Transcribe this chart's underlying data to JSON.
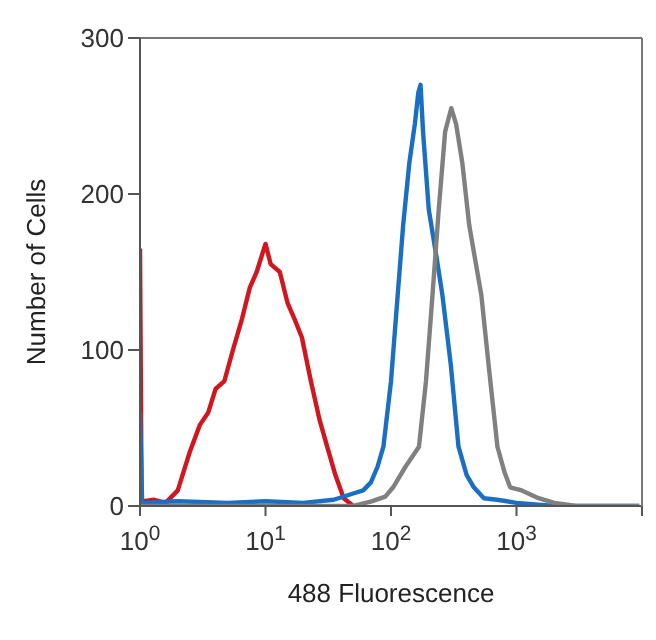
{
  "chart_data": {
    "type": "line",
    "xlabel": "488 Fluorescence",
    "ylabel": "Number of Cells",
    "log": "x",
    "xlim": [
      1,
      10000
    ],
    "xticks": [
      {
        "value": 1,
        "label": "10$^{0}$"
      },
      {
        "value": 10,
        "label": "10$^{1}$"
      },
      {
        "value": 100,
        "label": "10$^{2}$"
      },
      {
        "value": 1000,
        "label": "10$^{3}$"
      },
      {
        "value": 10000,
        "label": null
      }
    ],
    "ylim": [
      0,
      300
    ],
    "yticks": [
      0,
      100,
      200,
      300
    ],
    "marker": "none",
    "line_style": "solid",
    "series": [
      {
        "color": "#d0161e",
        "x": [
          1,
          1.03,
          1.3,
          1.6,
          2,
          2.5,
          3,
          3.5,
          4,
          4.7,
          5.5,
          6.5,
          7.5,
          8.5,
          10,
          11,
          13,
          15,
          17,
          19.5,
          23,
          27,
          31,
          36,
          42,
          50
        ],
        "values": [
          165,
          3,
          4,
          2,
          10,
          35,
          52,
          60,
          75,
          80,
          100,
          120,
          140,
          150,
          168,
          155,
          150,
          130,
          120,
          108,
          80,
          55,
          38,
          20,
          5,
          0
        ]
      },
      {
        "color": "#1a6fc4",
        "x": [
          1,
          1.04,
          2,
          5,
          10,
          20,
          35,
          50,
          60,
          69,
          78,
          87,
          100,
          113,
          125,
          140,
          155,
          165,
          172,
          180,
          200,
          230,
          257,
          300,
          345,
          400,
          457,
          550,
          700,
          1000,
          2000,
          9500
        ],
        "values": [
          60,
          2,
          3,
          2,
          3,
          2,
          4,
          8,
          10,
          15,
          25,
          38,
          80,
          135,
          180,
          220,
          245,
          265,
          270,
          240,
          190,
          160,
          135,
          90,
          38,
          20,
          12,
          5,
          4,
          2,
          0,
          0
        ]
      },
      {
        "color": "#808080",
        "x": [
          1,
          50,
          70,
          90,
          104,
          130,
          167,
          190,
          214,
          240,
          270,
          302,
          330,
          370,
          420,
          525,
          600,
          705,
          800,
          890,
          1100,
          1500,
          2000,
          3000,
          9500
        ],
        "values": [
          0,
          0,
          3,
          6,
          12,
          25,
          38,
          80,
          135,
          190,
          240,
          255,
          245,
          220,
          180,
          135,
          90,
          38,
          22,
          12,
          10,
          5,
          2,
          0,
          0
        ]
      }
    ]
  }
}
